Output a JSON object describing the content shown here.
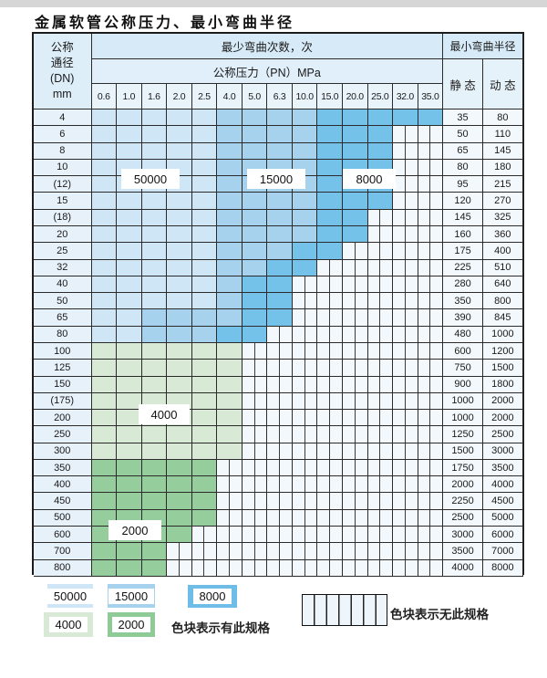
{
  "title": "金属软管公称压力、最小弯曲半径",
  "table": {
    "dn_header_lines": [
      "公称",
      "通径",
      "(DN)",
      "mm"
    ],
    "bend_cycles_header": "最少弯曲次数，次",
    "pressure_header": "公称压力（PN）MPa",
    "pressure_columns": [
      "0.6",
      "1.0",
      "1.6",
      "2.0",
      "2.5",
      "4.0",
      "5.0",
      "6.3",
      "10.0",
      "15.0",
      "20.0",
      "25.0",
      "32.0",
      "35.0"
    ],
    "radius_header": "最小弯曲半径",
    "static_header": "静 态",
    "dynamic_header": "动 态",
    "cell_colors": {
      "L": "#cfe6f6",
      "M": "#a6d2ee",
      "D": "#74c1e9",
      "G": "#d8e9d6",
      "H": "#95cd9d"
    },
    "cell_color_meaning": {
      "L": "50000",
      "M": "15000",
      "D": "8000",
      "G": "4000",
      "H": "2000",
      "X": "无此规格"
    },
    "region_labels": [
      "50000",
      "15000",
      "8000",
      "4000",
      "2000"
    ],
    "rows": [
      {
        "dn": "4",
        "cells": "LLLLLMMMMDDDDD",
        "static": "35",
        "dynamic": "80"
      },
      {
        "dn": "6",
        "cells": "LLLLLMMMMDDDXX",
        "static": "50",
        "dynamic": "110"
      },
      {
        "dn": "8",
        "cells": "LLLLLMMMMDDDXX",
        "static": "65",
        "dynamic": "145"
      },
      {
        "dn": "10",
        "cells": "LLLLLMMMMDDDXX",
        "static": "80",
        "dynamic": "180"
      },
      {
        "dn": "(12)",
        "cells": "LLLLLMMMMDDDXX",
        "static": "95",
        "dynamic": "215"
      },
      {
        "dn": "15",
        "cells": "LLLLLMMMMDDDXX",
        "static": "120",
        "dynamic": "270"
      },
      {
        "dn": "(18)",
        "cells": "LLLLLMMMMDDXXX",
        "static": "145",
        "dynamic": "325"
      },
      {
        "dn": "20",
        "cells": "LLLLLMMMMDDXXX",
        "static": "160",
        "dynamic": "360"
      },
      {
        "dn": "25",
        "cells": "LLLLLMMMDDXXXX",
        "static": "175",
        "dynamic": "400"
      },
      {
        "dn": "32",
        "cells": "LLLLLMMDDXXXXX",
        "static": "225",
        "dynamic": "510"
      },
      {
        "dn": "40",
        "cells": "LLLLLMDDXXXXXX",
        "static": "280",
        "dynamic": "640"
      },
      {
        "dn": "50",
        "cells": "LLLLLMDDXXXXXX",
        "static": "350",
        "dynamic": "800"
      },
      {
        "dn": "65",
        "cells": "LLMMMMDDXXXXXX",
        "static": "390",
        "dynamic": "845"
      },
      {
        "dn": "80",
        "cells": "LLMMMDDXXXXXXX",
        "static": "480",
        "dynamic": "1000"
      },
      {
        "dn": "100",
        "cells": "GGGGGGXXXXXXXX",
        "static": "600",
        "dynamic": "1200"
      },
      {
        "dn": "125",
        "cells": "GGGGGGXXXXXXXX",
        "static": "750",
        "dynamic": "1500"
      },
      {
        "dn": "150",
        "cells": "GGGGGGXXXXXXXX",
        "static": "900",
        "dynamic": "1800"
      },
      {
        "dn": "(175)",
        "cells": "GGGGGGXXXXXXXX",
        "static": "1000",
        "dynamic": "2000"
      },
      {
        "dn": "200",
        "cells": "GGGGGGXXXXXXXX",
        "static": "1000",
        "dynamic": "2000"
      },
      {
        "dn": "250",
        "cells": "GGGGGGXXXXXXXX",
        "static": "1250",
        "dynamic": "2500"
      },
      {
        "dn": "300",
        "cells": "GGGGGGXXXXXXXX",
        "static": "1500",
        "dynamic": "3000"
      },
      {
        "dn": "350",
        "cells": "HHHHHXXXXXXXXX",
        "static": "1750",
        "dynamic": "3500"
      },
      {
        "dn": "400",
        "cells": "HHHHHXXXXXXXXX",
        "static": "2000",
        "dynamic": "4000"
      },
      {
        "dn": "450",
        "cells": "HHHHHXXXXXXXXX",
        "static": "2250",
        "dynamic": "4500"
      },
      {
        "dn": "500",
        "cells": "HHHHHXXXXXXXXX",
        "static": "2500",
        "dynamic": "5000"
      },
      {
        "dn": "600",
        "cells": "HHHHXXXXXXXXXX",
        "static": "3000",
        "dynamic": "6000"
      },
      {
        "dn": "700",
        "cells": "HHHXXXXXXXXXXX",
        "static": "3500",
        "dynamic": "7000"
      },
      {
        "dn": "800",
        "cells": "HHHXXXXXXXXXXX",
        "static": "4000",
        "dynamic": "8000"
      }
    ]
  },
  "legend": {
    "items": [
      {
        "value": "50000",
        "color": "#cfe6f6"
      },
      {
        "value": "15000",
        "color": "#a6d2ee"
      },
      {
        "value": "8000",
        "color": "#6ebde7"
      },
      {
        "value": "4000",
        "color": "#d8e9d6"
      },
      {
        "value": "2000",
        "color": "#8ecb97"
      }
    ],
    "has_spec_note": "色块表示有此规格",
    "no_spec_note": "色块表示无此规格"
  }
}
